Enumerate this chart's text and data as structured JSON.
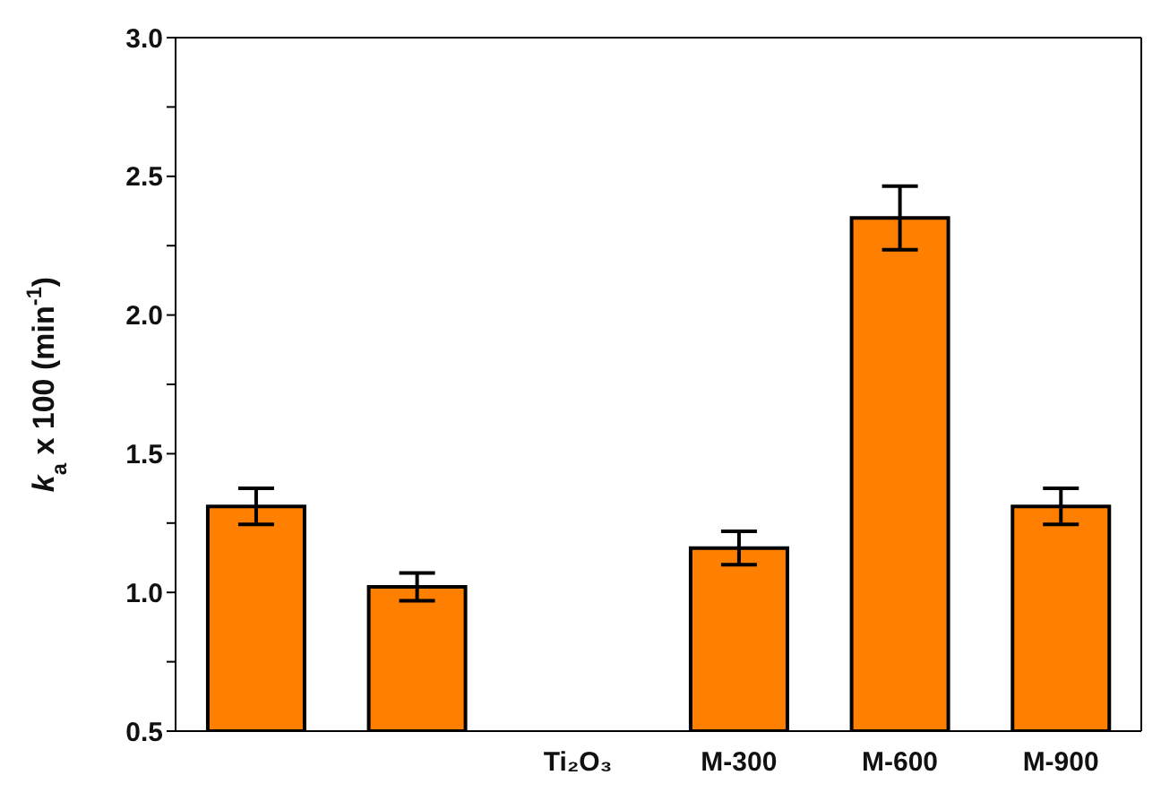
{
  "chart_data": {
    "type": "bar",
    "ylabel": "k$_{a}$ x 100 (min$^{-1}$)",
    "categories": [
      null,
      null,
      "Ti₂O₃",
      "M-300",
      "M-600",
      "M-900"
    ],
    "values": [
      1.31,
      1.02,
      null,
      1.16,
      2.35,
      1.31
    ],
    "errors": [
      0.065,
      0.05,
      null,
      0.06,
      0.115,
      0.065
    ],
    "color": "#ff7f00",
    "ylim": [
      0.5,
      3.0
    ],
    "yticks": [
      0.5,
      {
        "value": 0.75,
        "label": null
      },
      {
        "value": 1,
        "label": "1.0"
      },
      {
        "value": 1.25,
        "label": null
      },
      1.5,
      {
        "value": 1.75,
        "label": null
      },
      {
        "value": 2,
        "label": "2.0"
      },
      {
        "value": 2.25,
        "label": null
      },
      2.5,
      {
        "value": 2.75,
        "label": null
      },
      {
        "value": 3,
        "label": "3.0"
      }
    ],
    "grid": false,
    "legend": false
  }
}
